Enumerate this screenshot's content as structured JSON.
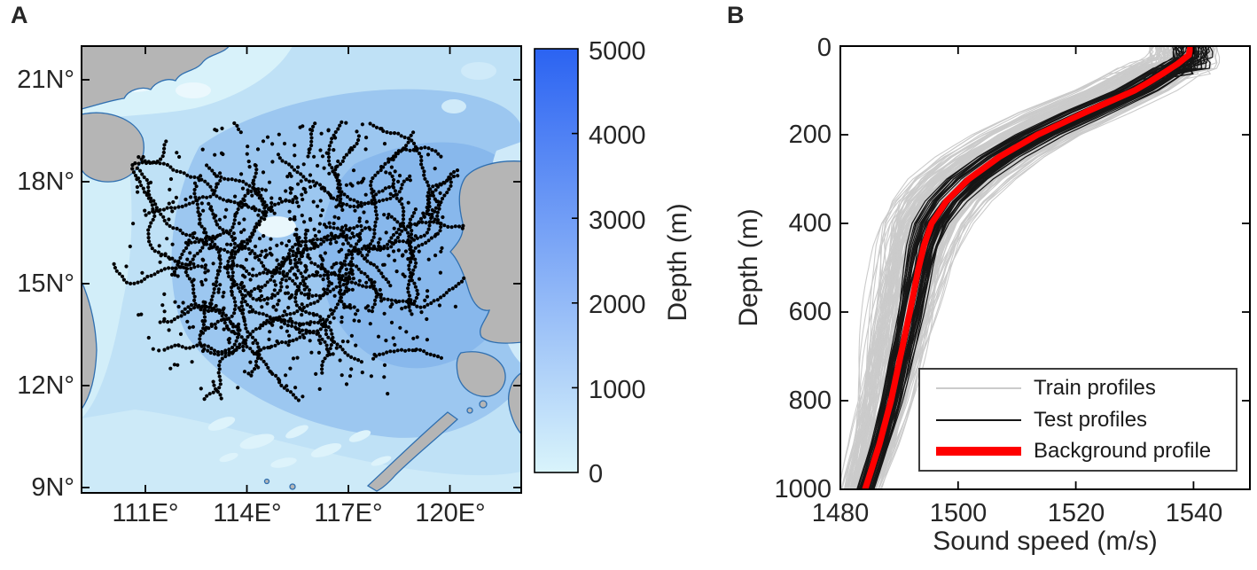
{
  "figure": {
    "background_color": "#ffffff",
    "panel_a": {
      "label": "A",
      "x_tick_labels": [
        "111E°",
        "114E°",
        "117E°",
        "120E°"
      ],
      "y_tick_labels": [
        "21N°",
        "18N°",
        "15N°",
        "12N°",
        "9N°"
      ],
      "colorbar": {
        "label": "Depth (m)",
        "tick_labels": [
          "5000",
          "4000",
          "3000",
          "2000",
          "1000",
          "0"
        ],
        "tick_values": [
          5000,
          4000,
          3000,
          2000,
          1000,
          0
        ],
        "range": [
          0,
          5000
        ],
        "top_color": "#2b63f2",
        "bottom_color": "#d9f4fb"
      },
      "land_color": "#b5b5b5",
      "coast_color": "#2f6fb0",
      "dot_color": "#000000"
    },
    "panel_b": {
      "label": "B",
      "xlabel": "Sound speed (m/s)",
      "ylabel": "Depth (m)",
      "x_tick_labels": [
        "1480",
        "1500",
        "1520",
        "1540"
      ],
      "y_tick_labels": [
        "0",
        "200",
        "400",
        "600",
        "800",
        "1000"
      ],
      "legend": [
        {
          "label": "Train profiles",
          "color": "#cbcbcb"
        },
        {
          "label": "Test profiles",
          "color": "#161616"
        },
        {
          "label": "Background profile",
          "color": "#ff0000"
        }
      ]
    }
  },
  "chart_data": [
    {
      "type": "scatter",
      "title": "A",
      "description": "Map of the South China Sea with bathymetry shading (colorbar Depth (m), 0-5000 m) and black dots marking sound-speed profile measurement locations.",
      "x_axis": {
        "label_units": "longitude E",
        "tick_values": [
          111,
          114,
          117,
          120
        ],
        "range": [
          109.1,
          122.1
        ]
      },
      "y_axis": {
        "label_units": "latitude N",
        "tick_values": [
          21,
          18,
          15,
          12,
          9
        ],
        "range": [
          8.84,
          22.0
        ]
      },
      "colorbar": {
        "label": "Depth (m)",
        "range": [
          0,
          5000
        ],
        "tick_values": [
          0,
          1000,
          2000,
          3000,
          4000,
          5000
        ]
      },
      "points_region": {
        "lon": [
          110.0,
          120.5
        ],
        "lat": [
          11.8,
          19.8
        ]
      },
      "approx_point_count": 2200,
      "scatter_sim": {
        "tracks": 46,
        "track_steps_min": 20,
        "track_steps_max": 62,
        "singles": 650,
        "dot_radius": 2.1
      }
    },
    {
      "type": "line",
      "title": "B",
      "xlabel": "Sound speed (m/s)",
      "ylabel": "Depth (m)",
      "xlim": [
        1480,
        1549.6
      ],
      "ylim": [
        0,
        1000
      ],
      "y_inverted": true,
      "legend_position": "lower right",
      "series": [
        {
          "name": "Train profiles",
          "color": "#cbcbcb",
          "count": 170,
          "spread_scale": 1.0,
          "skew": -0.22,
          "note": "ensemble of light-gray sound speed profiles enveloping the background profile"
        },
        {
          "name": "Test profiles",
          "color": "#161616",
          "count": 48,
          "spread_scale": 0.45,
          "skew": 0.02,
          "note": "ensemble of black sound speed profiles, tighter around the background profile"
        },
        {
          "name": "Background profile",
          "color": "#ff0000",
          "line_width": 7,
          "depths_m": [
            0,
            20,
            40,
            60,
            80,
            100,
            150,
            200,
            250,
            300,
            350,
            400,
            450,
            500,
            600,
            700,
            800,
            900,
            1000
          ],
          "speeds_mps": [
            1539.5,
            1539.2,
            1537.3,
            1535.0,
            1532.6,
            1530.0,
            1521.5,
            1513.5,
            1507.0,
            1501.8,
            1498.0,
            1495.5,
            1494.2,
            1493.3,
            1491.8,
            1490.2,
            1488.6,
            1486.6,
            1484.2
          ]
        }
      ],
      "spread_envelope": {
        "depths_m": [
          0,
          60,
          150,
          300,
          500,
          700,
          1000
        ],
        "halfwidth_mps": [
          5.5,
          7.0,
          8.5,
          8.0,
          6.0,
          5.0,
          3.2
        ]
      }
    }
  ]
}
